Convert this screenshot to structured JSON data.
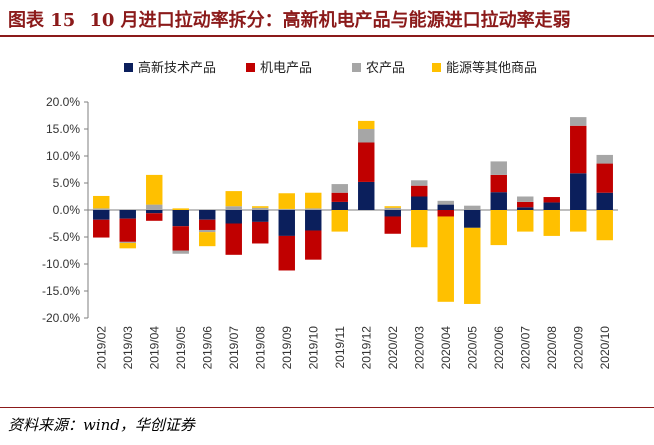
{
  "header": {
    "figure_label": "图表 15",
    "title": "10 月进口拉动率拆分：高新机电产品与能源进口拉动率走弱"
  },
  "footer": {
    "source": "资料来源：wind，华创证券"
  },
  "colors": {
    "high_tech": "#0b1f5c",
    "mech_elec": "#c00000",
    "agri": "#a6a6a6",
    "energy": "#ffc000",
    "grid": "#d9d9d9",
    "axis": "#7f7f7f",
    "brand": "#8b1a1a"
  },
  "chart_data": {
    "type": "bar",
    "stacked": true,
    "title": "10 月进口拉动率拆分：高新机电产品与能源进口拉动率走弱",
    "xlabel": "",
    "ylabel": "",
    "ylim": [
      -20,
      20
    ],
    "ytick_step": 5,
    "ytick_labels": [
      "20.0%",
      "15.0%",
      "10.0%",
      "5.0%",
      "0.0%",
      "-5.0%",
      "-10.0%",
      "-15.0%",
      "-20.0%"
    ],
    "grid": false,
    "legend_position": "top-center",
    "categories": [
      "2019/02",
      "2019/03",
      "2019/04",
      "2019/05",
      "2019/06",
      "2019/07",
      "2019/08",
      "2019/09",
      "2019/10",
      "2019/11",
      "2019/12",
      "2020/02",
      "2020/03",
      "2020/04",
      "2020/05",
      "2020/06",
      "2020/07",
      "2020/08",
      "2020/09",
      "2020/10"
    ],
    "series": [
      {
        "name": "高新技术产品",
        "key": "high_tech",
        "values": [
          -1.8,
          -1.6,
          -0.6,
          -3.0,
          -1.8,
          -2.5,
          -2.2,
          -4.8,
          -3.8,
          1.5,
          5.2,
          -1.2,
          2.5,
          1.0,
          -3.3,
          3.3,
          0.5,
          1.4,
          6.8,
          3.2
        ]
      },
      {
        "name": "机电产品",
        "key": "mech_elec",
        "values": [
          -3.3,
          -4.3,
          -1.4,
          -4.5,
          -1.9,
          -5.8,
          -4.0,
          -6.4,
          -5.4,
          1.7,
          7.3,
          -3.2,
          2.0,
          -1.2,
          0.0,
          3.2,
          1.0,
          1.0,
          8.8,
          5.4
        ]
      },
      {
        "name": "农产品",
        "key": "agri",
        "values": [
          0.3,
          -0.2,
          1.0,
          -0.6,
          -0.4,
          0.7,
          0.4,
          0.2,
          0.3,
          1.6,
          2.5,
          0.4,
          1.0,
          0.7,
          0.8,
          2.5,
          1.0,
          0.0,
          1.6,
          1.6
        ]
      },
      {
        "name": "能源等其他商品",
        "key": "energy",
        "values": [
          2.3,
          -1.0,
          5.5,
          0.3,
          -2.6,
          2.8,
          0.3,
          2.9,
          2.9,
          -4.0,
          1.5,
          0.3,
          -6.9,
          -15.8,
          -14.1,
          -6.5,
          -4.0,
          -4.8,
          -4.0,
          -5.6
        ]
      }
    ]
  }
}
